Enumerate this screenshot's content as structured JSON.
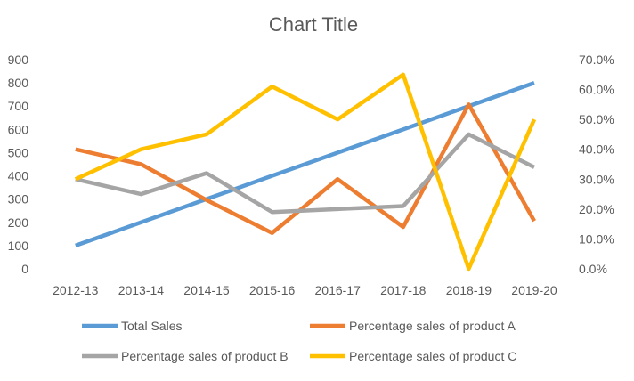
{
  "chart_data": {
    "type": "line",
    "title": "Chart Title",
    "categories": [
      "2012-13",
      "2013-14",
      "2014-15",
      "2015-16",
      "2016-17",
      "2017-18",
      "2018-19",
      "2019-20"
    ],
    "y_left": {
      "ticks": [
        "0",
        "100",
        "200",
        "300",
        "400",
        "500",
        "600",
        "700",
        "800",
        "900"
      ],
      "range": [
        0,
        900
      ]
    },
    "y_right": {
      "ticks": [
        "0.0%",
        "10.0%",
        "20.0%",
        "30.0%",
        "40.0%",
        "50.0%",
        "60.0%",
        "70.0%"
      ],
      "range": [
        0,
        70
      ]
    },
    "grid": false,
    "legend_position": "bottom",
    "series": [
      {
        "name": "Total Sales",
        "axis": "left",
        "color": "#5B9BD5",
        "values": [
          100,
          200,
          300,
          400,
          500,
          600,
          700,
          800
        ]
      },
      {
        "name": "Percentage sales of product A",
        "axis": "right",
        "color": "#ED7D31",
        "values": [
          40,
          35,
          23,
          12,
          30,
          14,
          55,
          16
        ]
      },
      {
        "name": "Percentage sales of product B",
        "axis": "right",
        "color": "#A5A5A5",
        "values": [
          30,
          25,
          32,
          19,
          20,
          21,
          45,
          34
        ]
      },
      {
        "name": "Percentage sales of product C",
        "axis": "right",
        "color": "#FFC000",
        "values": [
          30,
          40,
          45,
          61,
          50,
          65,
          0,
          50
        ]
      }
    ]
  }
}
